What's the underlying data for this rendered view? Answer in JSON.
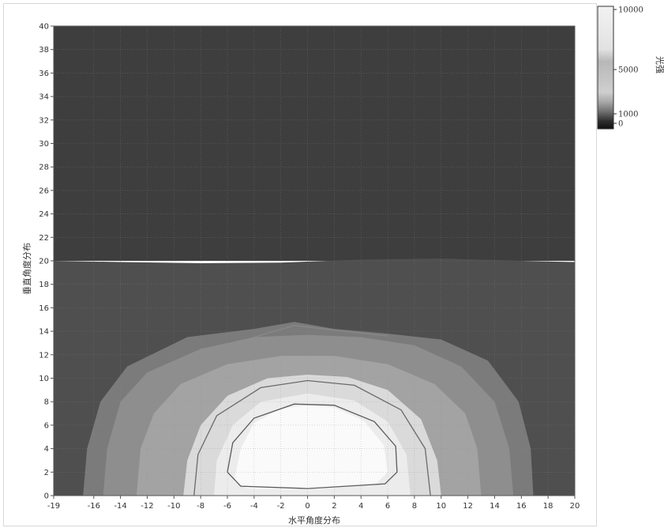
{
  "chart_data": {
    "type": "heatmap",
    "title": "",
    "xlabel": "水平角度分布",
    "ylabel": "垂直角度分布",
    "xlim": [
      -19,
      20
    ],
    "ylim": [
      0,
      40
    ],
    "x_ticks": [
      -19,
      -16,
      -14,
      -12,
      -10,
      -8,
      -6,
      -4,
      -2,
      0,
      2,
      4,
      6,
      8,
      10,
      12,
      14,
      16,
      18,
      20
    ],
    "y_ticks": [
      0,
      2,
      4,
      6,
      8,
      10,
      12,
      14,
      16,
      18,
      20,
      22,
      24,
      26,
      28,
      30,
      32,
      34,
      36,
      38,
      40
    ],
    "grid": true,
    "colorbar": {
      "title": "光强",
      "ticks": [
        10000,
        5000,
        1000,
        0
      ],
      "range": [
        0,
        10000
      ],
      "position": "right"
    },
    "regions": [
      {
        "level": "background-low",
        "color": "#3e3e3e",
        "boundary": [
          [
            -19,
            20
          ],
          [
            20,
            20
          ],
          [
            20,
            40
          ],
          [
            -19,
            40
          ]
        ]
      },
      {
        "level": "band-1",
        "color": "#4f4f4f",
        "boundary": [
          [
            -19,
            0
          ],
          [
            -19,
            20
          ],
          [
            -14,
            19.9
          ],
          [
            -8,
            19.8
          ],
          [
            -2,
            19.85
          ],
          [
            4,
            20.1
          ],
          [
            10,
            20.2
          ],
          [
            16,
            20.0
          ],
          [
            20,
            19.9
          ],
          [
            20,
            0
          ]
        ]
      },
      {
        "level": "band-2",
        "color": "#7b7b7b",
        "boundary": [
          [
            -16.8,
            0
          ],
          [
            -16.5,
            4
          ],
          [
            -15.5,
            8
          ],
          [
            -13.5,
            11
          ],
          [
            -9,
            13.5
          ],
          [
            -4,
            14.2
          ],
          [
            -1,
            14.8
          ],
          [
            2,
            14.2
          ],
          [
            6,
            13.8
          ],
          [
            10,
            13.3
          ],
          [
            13.5,
            11.5
          ],
          [
            15.8,
            8
          ],
          [
            16.7,
            4
          ],
          [
            16.9,
            0
          ]
        ]
      },
      {
        "level": "band-3",
        "color": "#8e8e8e",
        "boundary": [
          [
            -15.3,
            0
          ],
          [
            -15,
            4
          ],
          [
            -14,
            8
          ],
          [
            -12,
            10.5
          ],
          [
            -8,
            12.5
          ],
          [
            -4,
            13.5
          ],
          [
            0,
            13.7
          ],
          [
            4,
            13.5
          ],
          [
            8,
            12.8
          ],
          [
            11.5,
            11
          ],
          [
            14,
            8
          ],
          [
            15.1,
            4
          ],
          [
            15.4,
            0
          ]
        ]
      },
      {
        "level": "band-4",
        "color": "#a3a3a3",
        "boundary": [
          [
            -12.8,
            0
          ],
          [
            -12.5,
            4
          ],
          [
            -11.5,
            7
          ],
          [
            -9.5,
            9.5
          ],
          [
            -6,
            11.2
          ],
          [
            -2,
            11.9
          ],
          [
            2,
            11.9
          ],
          [
            6,
            11.2
          ],
          [
            9.5,
            9.5
          ],
          [
            11.8,
            7
          ],
          [
            12.7,
            4
          ],
          [
            13,
            0
          ]
        ]
      },
      {
        "level": "band-5",
        "color": "#dadada",
        "boundary": [
          [
            -9.3,
            0
          ],
          [
            -9,
            3
          ],
          [
            -8,
            6
          ],
          [
            -6,
            8.5
          ],
          [
            -3,
            10
          ],
          [
            0,
            10.3
          ],
          [
            3,
            10.1
          ],
          [
            6,
            9
          ],
          [
            8.5,
            6.5
          ],
          [
            9.7,
            3
          ],
          [
            10,
            0
          ]
        ]
      },
      {
        "level": "band-6",
        "color": "#ececec",
        "boundary": [
          [
            -7,
            0
          ],
          [
            -6.8,
            3
          ],
          [
            -5.6,
            6
          ],
          [
            -3.5,
            8
          ],
          [
            0,
            8.7
          ],
          [
            3.5,
            8.1
          ],
          [
            6,
            6.3
          ],
          [
            7.4,
            3.5
          ],
          [
            7.7,
            0
          ]
        ]
      },
      {
        "level": "peak",
        "color": "#fafafa",
        "boundary": [
          [
            -5.5,
            1.2
          ],
          [
            -5,
            4
          ],
          [
            -4,
            6.2
          ],
          [
            -2,
            7.4
          ],
          [
            0,
            7.7
          ],
          [
            2,
            7.5
          ],
          [
            4.2,
            6.4
          ],
          [
            5.7,
            4.3
          ],
          [
            6,
            2
          ],
          [
            5,
            0.9
          ],
          [
            0,
            0.5
          ],
          [
            -4.5,
            0.6
          ]
        ]
      }
    ],
    "contour_lines": [
      {
        "color": "#5a5a5a",
        "points": [
          [
            -6,
            2
          ],
          [
            -5.6,
            4.5
          ],
          [
            -4,
            6.6
          ],
          [
            -1,
            7.8
          ],
          [
            2,
            7.7
          ],
          [
            5,
            6.3
          ],
          [
            6.6,
            4.2
          ],
          [
            6.7,
            2
          ],
          [
            5.8,
            1
          ],
          [
            0,
            0.6
          ],
          [
            -5,
            0.8
          ],
          [
            -6,
            2
          ]
        ]
      },
      {
        "color": "#6a6a6a",
        "points": [
          [
            -8.5,
            0
          ],
          [
            -8.2,
            3.5
          ],
          [
            -6.8,
            6.8
          ],
          [
            -3.5,
            9.2
          ],
          [
            0,
            9.8
          ],
          [
            3.5,
            9.4
          ],
          [
            7,
            7.3
          ],
          [
            8.8,
            4
          ],
          [
            9.2,
            0
          ]
        ]
      },
      {
        "color": "#888888",
        "points": [
          [
            -4,
            13.5
          ],
          [
            -1,
            14.5
          ],
          [
            2,
            14.1
          ],
          [
            6,
            13.6
          ]
        ]
      }
    ],
    "annotations": []
  },
  "colors": {
    "frame": "#d8d8d8",
    "axis": "#555555",
    "grid": "#8c8c8c"
  }
}
